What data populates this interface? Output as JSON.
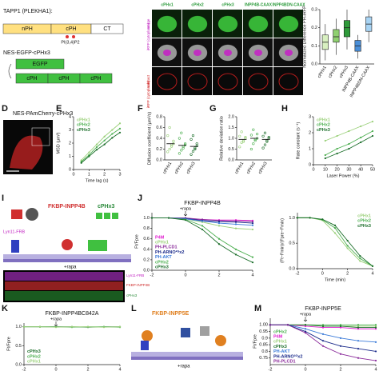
{
  "figure": {
    "letters": [
      "D",
      "E",
      "F",
      "G",
      "H",
      "I",
      "J",
      "K",
      "L",
      "M"
    ],
    "tapp1": "TAPP1 (PLEKHA1):",
    "nph": "nPH",
    "cph": "cPH",
    "ct": "CT",
    "pip": "PI(3,4)P2",
    "construct": "NES-EGFP-cPHx3",
    "egfp": "EGFP",
    "cphs": [
      "cPH",
      "cPH",
      "cPH"
    ],
    "columns": [
      "cPHx1",
      "cPHx2",
      "cPHx3",
      "INPP4B-CAAX",
      "INPP4BDN-CAAX"
    ],
    "rows": [
      "merge",
      "iRFP (cytoplasm)",
      "subtract",
      "iRFP (cytoplasm)"
    ],
    "d_label": "NES-PAmCherry-cPHx3",
    "i_enzyme": "FKBP-INPP4B",
    "i_sensor": "cPHx3",
    "i_anchor": "Lyn11-FRB",
    "i_rapa": "+rapa",
    "i_rows": [
      "Lyn11-FRB",
      "FKBP-INPP4B",
      "cPHx3"
    ],
    "l_enzyme": "FKBP-INPP5E",
    "l_rapa": "+rapa"
  },
  "chart_data": [
    {
      "type": "box",
      "ylabel": "Normalized Difference PH-iRFP",
      "categories": [
        "cPHx1",
        "cPHx2",
        "cPHx3",
        "INPP4B-CAAX",
        "INPP4BDN-CAAX"
      ],
      "colors": [
        "#d8f0c0",
        "#8fd070",
        "#2e9a3a",
        "#4a8fd8",
        "#a8d4f4"
      ],
      "stats": [
        {
          "min": 0.02,
          "q1": 0.08,
          "median": 0.12,
          "q3": 0.16,
          "max": 0.22
        },
        {
          "min": 0.05,
          "q1": 0.12,
          "median": 0.15,
          "q3": 0.19,
          "max": 0.25
        },
        {
          "min": 0.08,
          "q1": 0.15,
          "median": 0.2,
          "q3": 0.24,
          "max": 0.3
        },
        {
          "min": 0.03,
          "q1": 0.07,
          "median": 0.1,
          "q3": 0.13,
          "max": 0.16
        },
        {
          "min": 0.12,
          "q1": 0.18,
          "median": 0.22,
          "q3": 0.26,
          "max": 0.3
        }
      ],
      "ylim": [
        0,
        0.3
      ],
      "yticks": [
        {
          "value": 0,
          "label": "0.0"
        },
        0.1,
        0.2,
        0.3
      ]
    },
    {
      "type": "line",
      "xlabel": "Time lag (s)",
      "ylabel": "MSD (μm²)",
      "x": [
        0.5,
        1,
        1.5,
        2,
        2.5,
        3
      ],
      "xlim": [
        0,
        3
      ],
      "xticks": [
        0,
        1,
        2,
        3
      ],
      "ylim": [
        0,
        4
      ],
      "yticks": [
        0,
        1,
        2,
        3,
        4
      ],
      "legend": "upper left",
      "series": [
        {
          "name": "cPHx1",
          "color": "#9bd07a",
          "values": [
            0.7,
            1.3,
            1.9,
            2.5,
            3.0,
            3.5
          ]
        },
        {
          "name": "cPHx2",
          "color": "#4caf50",
          "values": [
            0.6,
            1.1,
            1.7,
            2.2,
            2.7,
            3.1
          ]
        },
        {
          "name": "cPHx3",
          "color": "#1b6e2a",
          "values": [
            0.5,
            1.0,
            1.5,
            1.9,
            2.4,
            2.8
          ]
        }
      ]
    },
    {
      "type": "dot",
      "ylabel": "Diffusion coefficient (μm²/s)",
      "categories": [
        "cPHx1",
        "cPHx2",
        "cPHx3"
      ],
      "colors": [
        "#9bd07a",
        "#4caf50",
        "#1b6e2a"
      ],
      "values": [
        0.3,
        0.27,
        0.25
      ],
      "points": [
        [
          0.15,
          0.2,
          0.28,
          0.35,
          0.45,
          0.6,
          0.25,
          0.3
        ],
        [
          0.12,
          0.18,
          0.25,
          0.3,
          0.4,
          0.5,
          0.22,
          0.28
        ],
        [
          0.1,
          0.16,
          0.22,
          0.3,
          0.38,
          0.45,
          0.2,
          0.26
        ]
      ],
      "ylim": [
        0,
        0.8
      ],
      "yticks": [
        {
          "value": 0,
          "label": "0.0"
        },
        0.2,
        0.4,
        0.6,
        0.8
      ]
    },
    {
      "type": "dot",
      "ylabel": "Relative deviation ratio",
      "categories": [
        "cPHx1",
        "cPHx2",
        "cPHx3"
      ],
      "colors": [
        "#9bd07a",
        "#4caf50",
        "#1b6e2a"
      ],
      "values": [
        0.95,
        1.0,
        0.95
      ],
      "points": [
        [
          0.6,
          0.8,
          0.9,
          1.0,
          1.1,
          1.3,
          0.85,
          1.05
        ],
        [
          0.5,
          0.75,
          0.9,
          1.0,
          1.15,
          1.4,
          0.95,
          1.2
        ],
        [
          0.55,
          0.7,
          0.85,
          1.0,
          1.1,
          1.25,
          0.9,
          1.05
        ]
      ],
      "ylim": [
        0,
        2
      ],
      "yticks": [
        {
          "value": 0,
          "label": "0.0"
        },
        0.5,
        {
          "value": 1,
          "label": "1.0"
        },
        1.5,
        {
          "value": 2,
          "label": "2.0"
        }
      ]
    },
    {
      "type": "line",
      "xlabel": "Laser Power (%)",
      "ylabel": "Rate constant (s⁻¹)",
      "x": [
        10,
        20,
        30,
        40,
        50
      ],
      "xlim": [
        0,
        50
      ],
      "xticks": [
        0,
        10,
        20,
        30,
        40,
        50
      ],
      "ylim": [
        0,
        3
      ],
      "yticks": [
        0,
        1,
        2,
        3
      ],
      "legend": "upper left",
      "series": [
        {
          "name": "cPHx1",
          "color": "#9bd07a",
          "values": [
            1.5,
            1.8,
            2.1,
            2.4,
            2.7
          ]
        },
        {
          "name": "cPHx2",
          "color": "#4caf50",
          "values": [
            0.6,
            1.0,
            1.3,
            1.7,
            2.1
          ]
        },
        {
          "name": "cPHx3",
          "color": "#1b6e2a",
          "values": [
            0.4,
            0.7,
            1.0,
            1.4,
            1.8
          ]
        }
      ]
    },
    {
      "type": "line",
      "title": "FKBP-INPP4B",
      "annotation": "+rapa",
      "annotation_x": 0,
      "ylabel": "Ft/Fpre",
      "x": [
        -2,
        -1,
        0,
        1,
        2,
        3,
        4
      ],
      "xlim": [
        -2,
        4
      ],
      "xticks": [
        -2,
        0,
        2,
        4
      ],
      "ylim": [
        0,
        1.1
      ],
      "yticks": [
        {
          "value": 0,
          "label": "0.0"
        },
        0.2,
        0.4,
        0.6,
        0.8,
        {
          "value": 1,
          "label": "1.0"
        }
      ],
      "legend": "lower left",
      "series": [
        {
          "name": "P4M",
          "color": "#e020d0",
          "values": [
            1,
            1,
            0.98,
            0.97,
            0.96,
            0.96,
            0.95
          ]
        },
        {
          "name": "cPHx1",
          "color": "#9bd07a",
          "values": [
            1,
            1,
            0.98,
            0.92,
            0.85,
            0.8,
            0.78
          ]
        },
        {
          "name": "PH-PLCD1",
          "color": "#8a2a9a",
          "values": [
            1,
            1,
            1,
            0.97,
            0.95,
            0.94,
            0.93
          ]
        },
        {
          "name": "PH-ARNO²ᴳx2",
          "color": "#1a2a8a",
          "values": [
            1,
            1,
            0.99,
            0.95,
            0.93,
            0.92,
            0.9
          ]
        },
        {
          "name": "PH-AKT",
          "color": "#3a7ad8",
          "values": [
            1,
            1,
            0.98,
            0.94,
            0.9,
            0.88,
            0.86
          ]
        },
        {
          "name": "cPHx2",
          "color": "#4caf50",
          "values": [
            1,
            1,
            0.97,
            0.85,
            0.6,
            0.4,
            0.25
          ]
        },
        {
          "name": "cPHx3",
          "color": "#1b6e2a",
          "values": [
            1,
            1,
            0.96,
            0.78,
            0.5,
            0.3,
            0.15
          ]
        }
      ]
    },
    {
      "type": "line",
      "xlabel": "Time (min)",
      "ylabel": "(Ft−Fmin)/(Fpre−Fmin)",
      "x": [
        -2,
        -1,
        0,
        1,
        2,
        3,
        4
      ],
      "xlim": [
        -2,
        4
      ],
      "xticks": [
        -2,
        0,
        2,
        4
      ],
      "ylim": [
        0,
        1.1
      ],
      "yticks": [
        {
          "value": 0,
          "label": "0.0"
        },
        0.5,
        {
          "value": 1,
          "label": "1.0"
        }
      ],
      "legend": "upper right",
      "series": [
        {
          "name": "cPHx1",
          "color": "#9bd07a",
          "values": [
            1,
            1,
            0.95,
            0.7,
            0.4,
            0.15,
            0.05
          ]
        },
        {
          "name": "cPHx2",
          "color": "#4caf50",
          "values": [
            1,
            1,
            0.96,
            0.8,
            0.45,
            0.2,
            0.05
          ]
        },
        {
          "name": "cPHx3",
          "color": "#1b6e2a",
          "values": [
            1,
            1,
            0.97,
            0.85,
            0.55,
            0.25,
            0.05
          ]
        }
      ]
    },
    {
      "type": "line",
      "title": "FKBP-INPP4BC842A",
      "annotation": "+rapa",
      "annotation_x": 0,
      "ylabel": "Ft/Fpre",
      "x": [
        -2,
        -1,
        0,
        1,
        2,
        3,
        4
      ],
      "xlim": [
        -2,
        4
      ],
      "xticks": [
        -2,
        0,
        2,
        4
      ],
      "ylim": [
        0,
        1.1
      ],
      "yticks": [
        {
          "value": 0,
          "label": "0.0"
        },
        0.5,
        {
          "value": 1,
          "label": "1.0"
        }
      ],
      "legend": "lower left",
      "series": [
        {
          "name": "cPHx3",
          "color": "#1b6e2a",
          "values": [
            1,
            1,
            1,
            1,
            0.99,
            1,
            1
          ]
        },
        {
          "name": "cPHx2",
          "color": "#4caf50",
          "values": [
            1,
            1,
            1,
            0.99,
            1,
            1,
            0.99
          ]
        },
        {
          "name": "cPHx1",
          "color": "#9bd07a",
          "values": [
            1,
            1,
            0.99,
            1,
            1,
            0.99,
            1
          ]
        }
      ]
    },
    {
      "type": "line",
      "title": "FKBP-INPP5E",
      "annotation": "+rapa",
      "annotation_x": 0,
      "ylabel": "Ft/Fpre",
      "x": [
        -2,
        -1,
        0,
        1,
        2,
        3,
        4
      ],
      "xlim": [
        -2,
        4
      ],
      "xticks": [
        -2,
        0,
        2,
        4
      ],
      "ylim": [
        0.7,
        1.05
      ],
      "yticks": [
        0.75,
        0.8,
        0.85,
        0.9,
        0.95,
        {
          "value": 1,
          "label": "1.00"
        }
      ],
      "legend": "lower left",
      "series": [
        {
          "name": "cPHx2",
          "color": "#4caf50",
          "values": [
            1,
            1,
            1,
            1,
            1,
            1,
            1
          ]
        },
        {
          "name": "P4M",
          "color": "#e020d0",
          "values": [
            1,
            1,
            0.99,
            0.98,
            0.98,
            0.97,
            0.97
          ]
        },
        {
          "name": "cPHx1",
          "color": "#9bd07a",
          "values": [
            1,
            1,
            1,
            0.99,
            0.99,
            0.99,
            0.99
          ]
        },
        {
          "name": "cPHx3",
          "color": "#1b6e2a",
          "values": [
            1,
            1,
            1,
            0.99,
            0.99,
            0.98,
            0.98
          ]
        },
        {
          "name": "PH-AKT",
          "color": "#3a7ad8",
          "values": [
            1,
            1,
            0.97,
            0.93,
            0.9,
            0.88,
            0.87
          ]
        },
        {
          "name": "PH-ARNO²ᴳx2",
          "color": "#1a2a8a",
          "values": [
            1,
            1,
            0.95,
            0.88,
            0.84,
            0.82,
            0.8
          ]
        },
        {
          "name": "PH-PLCD1",
          "color": "#8a2a9a",
          "values": [
            1,
            1,
            0.94,
            0.84,
            0.78,
            0.75,
            0.73
          ]
        }
      ]
    }
  ]
}
